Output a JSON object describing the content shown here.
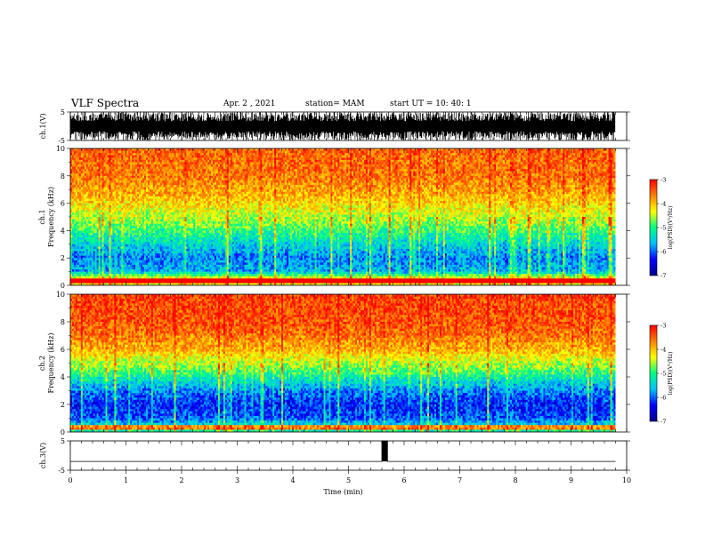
{
  "header": {
    "title": "VLF Spectra",
    "date": "Apr. 2 , 2021",
    "station": "station= MAM",
    "start": "start UT = 10: 40: 1"
  },
  "chart_data": [
    {
      "type": "line",
      "title": "",
      "ylabel": "ch.1(V)",
      "ylim": [
        -5,
        5
      ],
      "yticks": [
        "5",
        "-5"
      ],
      "xlim": [
        0,
        10
      ],
      "description_values": {
        "signal": "dense impulsive spikes filling -5..5 V from 0 to 9.8 min"
      },
      "x": [
        0,
        9.8
      ],
      "y_range": [
        -5,
        5
      ]
    },
    {
      "type": "heatmap",
      "title": "",
      "ylabel": "ch.1\nFrequency (kHz)",
      "ylabel_lines": [
        "ch.1",
        "Frequency (kHz)"
      ],
      "ylim": [
        0,
        10
      ],
      "yticks": [
        "0",
        "2",
        "4",
        "6",
        "8",
        "10"
      ],
      "xlim": [
        0,
        10
      ],
      "data_extent_min": 9.8,
      "colorbar": {
        "label": "log(PSD)(V²/Hz)",
        "min": -7,
        "max": -3,
        "ticks": [
          "-3",
          "-4",
          "-5",
          "-6",
          "-7"
        ]
      },
      "profile": {
        "freq_kHz": [
          0,
          0.5,
          1,
          2,
          3,
          4,
          5,
          6,
          7,
          8,
          10
        ],
        "mean_logPSD": [
          -4.4,
          -4.3,
          -5.8,
          -6.0,
          -5.6,
          -5.1,
          -4.6,
          -4.2,
          -3.9,
          -3.7,
          -3.6
        ]
      }
    },
    {
      "type": "heatmap",
      "title": "",
      "ylabel": "ch.2\nFrequency (kHz)",
      "ylabel_lines": [
        "ch.2",
        "Frequency (kHz)"
      ],
      "ylim": [
        0,
        10
      ],
      "yticks": [
        "0",
        "2",
        "4",
        "6",
        "8",
        "10"
      ],
      "xlim": [
        0,
        10
      ],
      "data_extent_min": 9.8,
      "colorbar": {
        "label": "log(PSD)(V²/Hz)",
        "min": -7,
        "max": -3,
        "ticks": [
          "-3",
          "-4",
          "-5",
          "-6",
          "-7"
        ]
      },
      "profile": {
        "freq_kHz": [
          0,
          0.5,
          1,
          2,
          3,
          4,
          5,
          6,
          7,
          8,
          10
        ],
        "mean_logPSD": [
          -5.2,
          -5.6,
          -6.2,
          -6.4,
          -6.0,
          -5.3,
          -4.6,
          -4.0,
          -3.7,
          -3.5,
          -3.4
        ]
      }
    },
    {
      "type": "line",
      "title": "",
      "ylabel": "ch.3(V)",
      "ylim": [
        -5,
        5
      ],
      "yticks": [
        "5",
        "-5"
      ],
      "xlim": [
        0,
        10
      ],
      "xlabel": "Time (min)",
      "xticks": [
        "0",
        "1",
        "2",
        "3",
        "4",
        "5",
        "6",
        "7",
        "8",
        "9",
        "10"
      ],
      "x": [
        0,
        5.6,
        5.6,
        5.7,
        5.7,
        9.8
      ],
      "y": [
        -2,
        -2,
        5,
        5,
        -2,
        -2
      ]
    }
  ],
  "colors": {
    "axis": "#000000",
    "colormap": [
      "#00008b",
      "#0000ff",
      "#00bfff",
      "#00ff80",
      "#ffff00",
      "#ff8000",
      "#ff0000"
    ]
  }
}
